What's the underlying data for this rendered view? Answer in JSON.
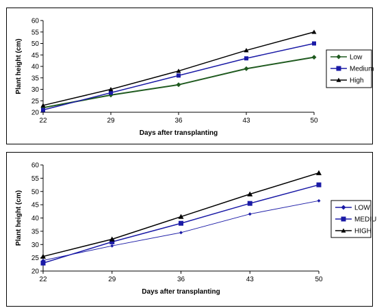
{
  "chart_data": [
    {
      "type": "line",
      "title": "",
      "xlabel": "Days after transplanting",
      "ylabel": "Plant height (cm)",
      "x": [
        22,
        29,
        36,
        43,
        50
      ],
      "ylim": [
        20,
        60
      ],
      "yticks": [
        20,
        25,
        30,
        35,
        40,
        45,
        50,
        55,
        60
      ],
      "grid": false,
      "legend_position": "right",
      "series": [
        {
          "name": "Low",
          "color": "#1f5a1f",
          "marker": "diamond",
          "values": [
            22,
            27.5,
            32,
            39,
            44
          ]
        },
        {
          "name": "Medium",
          "color": "#1a1aa6",
          "marker": "square",
          "values": [
            21,
            28.5,
            36,
            43.5,
            50
          ]
        },
        {
          "name": "High",
          "color": "#000000",
          "marker": "triangle",
          "values": [
            23,
            30,
            38,
            47,
            55
          ]
        }
      ]
    },
    {
      "type": "line",
      "title": "",
      "xlabel": "Days after transplanting",
      "ylabel": "Plant height (cm)",
      "x": [
        22,
        29,
        36,
        43,
        50
      ],
      "ylim": [
        20,
        60
      ],
      "yticks": [
        20,
        25,
        30,
        35,
        40,
        45,
        50,
        55,
        60
      ],
      "grid": false,
      "legend_position": "right",
      "series": [
        {
          "name": "LOW",
          "color": "#1a1aa6",
          "marker": "diamond",
          "values": [
            24,
            29.5,
            34.5,
            41.5,
            46.5
          ]
        },
        {
          "name": "MEDIUM",
          "color": "#1a1aa6",
          "marker": "square",
          "values": [
            23,
            31,
            38,
            45.5,
            52.5
          ]
        },
        {
          "name": "HIGH",
          "color": "#000000",
          "marker": "triangle",
          "values": [
            25.5,
            32,
            40.5,
            49,
            57
          ]
        }
      ]
    }
  ]
}
